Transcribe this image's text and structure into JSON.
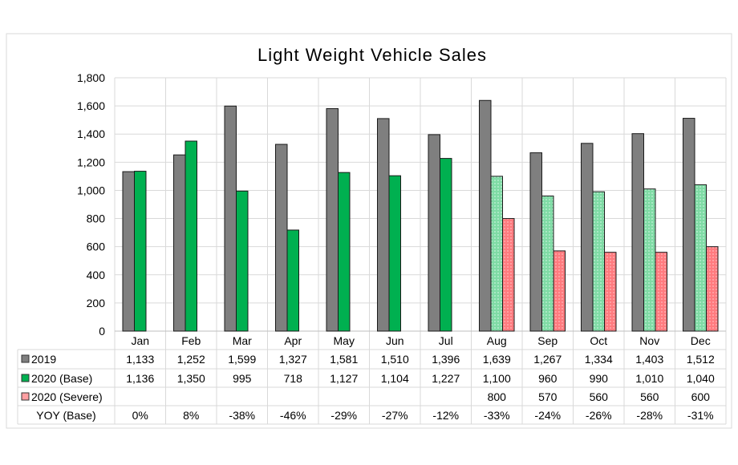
{
  "chart_data": {
    "type": "bar",
    "title": "Light Weight Vehicle Sales",
    "xlabel": "",
    "ylabel": "",
    "ylim": [
      0,
      1800
    ],
    "yticks": [
      "0",
      "200",
      "400",
      "600",
      "800",
      "1,000",
      "1,200",
      "1,400",
      "1,600",
      "1,800"
    ],
    "ytick_values": [
      0,
      200,
      400,
      600,
      800,
      1000,
      1200,
      1400,
      1600,
      1800
    ],
    "grid": true,
    "legend": "data-table-left",
    "categories": [
      "Jan",
      "Feb",
      "Mar",
      "Apr",
      "May",
      "Jun",
      "Jul",
      "Aug",
      "Sep",
      "Oct",
      "Nov",
      "Dec"
    ],
    "series": [
      {
        "name": "2019",
        "color": "#7f7f7f",
        "values": [
          1133,
          1252,
          1599,
          1327,
          1581,
          1510,
          1396,
          1639,
          1267,
          1334,
          1403,
          1512
        ],
        "labels": [
          "1,133",
          "1,252",
          "1,599",
          "1,327",
          "1,581",
          "1,510",
          "1,396",
          "1,639",
          "1,267",
          "1,334",
          "1,403",
          "1,512"
        ]
      },
      {
        "name": "2020 (Base)",
        "color": "#00b050",
        "forecast_color": "#7fdba5",
        "values": [
          1136,
          1350,
          995,
          718,
          1127,
          1104,
          1227,
          1100,
          960,
          990,
          1010,
          1040
        ],
        "labels": [
          "1,136",
          "1,350",
          "995",
          "718",
          "1,127",
          "1,104",
          "1,227",
          "1,100",
          "960",
          "990",
          "1,010",
          "1,040"
        ]
      },
      {
        "name": "2020 (Severe)",
        "color": "#ff7b7f",
        "values": [
          null,
          null,
          null,
          null,
          null,
          null,
          null,
          800,
          570,
          560,
          560,
          600
        ],
        "labels": [
          "",
          "",
          "",
          "",
          "",
          "",
          "",
          "800",
          "570",
          "560",
          "560",
          "600"
        ]
      }
    ],
    "table_extra_row": {
      "name": "YOY (Base)",
      "labels": [
        "0%",
        "8%",
        "-38%",
        "-46%",
        "-29%",
        "-27%",
        "-12%",
        "-33%",
        "-24%",
        "-26%",
        "-28%",
        "-31%"
      ]
    }
  }
}
